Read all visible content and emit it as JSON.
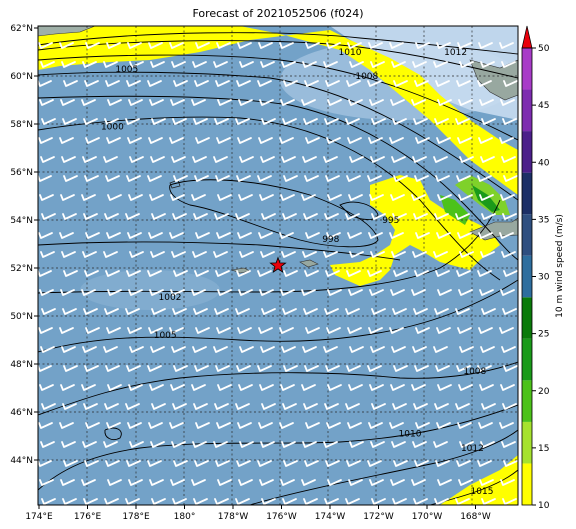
{
  "title": "Forecast of 2021052506 (f024)",
  "map": {
    "lon_ticks": [
      "174°E",
      "176°E",
      "178°E",
      "180°",
      "178°W",
      "176°W",
      "174°W",
      "172°W",
      "170°W",
      "168°W"
    ],
    "lat_ticks": [
      "62°N",
      "60°N",
      "58°N",
      "56°N",
      "54°N",
      "52°N",
      "50°N",
      "48°N",
      "46°N",
      "44°N"
    ],
    "isobar_labels": [
      {
        "text": "1005",
        "lon": 177.7,
        "lat": 60.3
      },
      {
        "text": "1010",
        "lon": -173.0,
        "lat": 61.0
      },
      {
        "text": "1008",
        "lon": -172.3,
        "lat": 60.0
      },
      {
        "text": "1012",
        "lon": -168.6,
        "lat": 61.0
      },
      {
        "text": "1000",
        "lon": 177.1,
        "lat": 57.9
      },
      {
        "text": "995",
        "lon": -171.3,
        "lat": 54.0
      },
      {
        "text": "998",
        "lon": -173.8,
        "lat": 53.2
      },
      {
        "text": "1002",
        "lon": 179.5,
        "lat": 50.8
      },
      {
        "text": "1005",
        "lon": 179.3,
        "lat": 49.2
      },
      {
        "text": "1008",
        "lon": -167.8,
        "lat": 47.7
      },
      {
        "text": "1010",
        "lon": -170.5,
        "lat": 45.1
      },
      {
        "text": "1012",
        "lon": -167.9,
        "lat": 44.5
      },
      {
        "text": "1015",
        "lon": -167.5,
        "lat": 42.7
      }
    ],
    "storm_marker": {
      "lon": -176.0,
      "lat": 52.1
    }
  },
  "colorbar": {
    "label": "10 m wind speed (m/s)",
    "ticks": [
      "50",
      "45",
      "40",
      "35",
      "30",
      "25",
      "20",
      "15",
      "10"
    ],
    "colors": [
      "#ffff00",
      "#a6e22e",
      "#4cc21a",
      "#1a9a1a",
      "#0a7a0a",
      "#2e6e9e",
      "#2f4f80",
      "#1c2f66",
      "#4b1f8a",
      "#7d2cb0",
      "#a83cc8"
    ],
    "extend_color": "#e8000b"
  }
}
